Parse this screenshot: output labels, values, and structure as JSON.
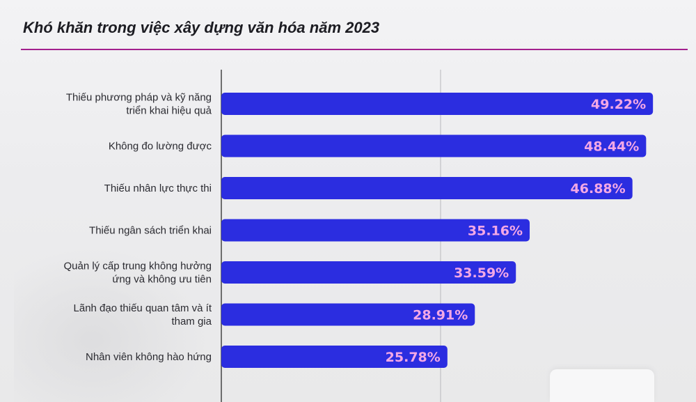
{
  "chart_data": {
    "type": "bar",
    "orientation": "horizontal",
    "title": "Khó khăn trong việc xây dựng văn hóa năm 2023",
    "categories": [
      [
        "Thiếu phương pháp và kỹ năng",
        "triển khai hiệu quả"
      ],
      [
        "Không đo lường được"
      ],
      [
        "Thiếu nhân lực thực thi"
      ],
      [
        "Thiếu ngân sách triển khai"
      ],
      [
        "Quản lý cấp trung không hưởng",
        "ứng và không ưu tiên"
      ],
      [
        "Lãnh đạo thiếu quan tâm và ít",
        "tham gia"
      ],
      [
        "Nhân viên không hào hứng"
      ]
    ],
    "values": [
      49.22,
      48.44,
      46.88,
      35.16,
      33.59,
      28.91,
      25.78
    ],
    "value_labels": [
      "49.22%",
      "48.44%",
      "46.88%",
      "35.16%",
      "33.59%",
      "28.91%",
      "25.78%"
    ],
    "xlim": [
      0,
      50
    ],
    "grid": true,
    "colors": {
      "bar": "#2b2de0",
      "value_text": "#f3a8e6",
      "axis": "#444444",
      "rule": "#a31f8d"
    }
  }
}
